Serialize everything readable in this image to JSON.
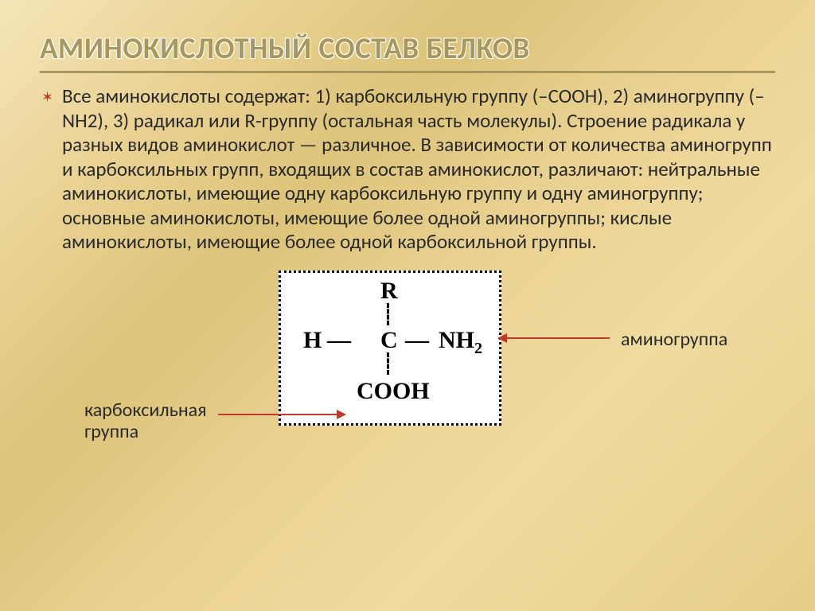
{
  "title": "АМИНОКИСЛОТНЫЙ СОСТАВ БЕЛКОВ",
  "body_html": "Все аминокислоты содержат: 1) карбоксильную группу (–COOH), 2) аминогруппу (–NH2), 3) радикал или R-группу (остальная часть молекулы). Строение радикала у разных видов аминокислот — различное. В зависимости от количества аминогрупп и карбоксильных групп, входящих в состав аминокислот, различают: нейтральные аминокислоты, имеющие одну карбоксильную группу и одну аминогруппу; основные аминокислоты, имеющие более одной аминогруппы; кислые аминокислоты, имеющие более одной карбоксильной группы.",
  "formula": {
    "r": "R",
    "h": "H",
    "c": "C",
    "nh2": "NH",
    "nh2_sub": "2",
    "cooh": "COOН",
    "dash": "—"
  },
  "labels": {
    "amino": "аминогруппа",
    "carboxyl_line1": "карбоксильная",
    "carboxyl_line2": "группа"
  },
  "colors": {
    "title": "#a8985e",
    "accent": "#c0392b",
    "text": "#2a2a2a",
    "box_bg": "#ffffff"
  }
}
